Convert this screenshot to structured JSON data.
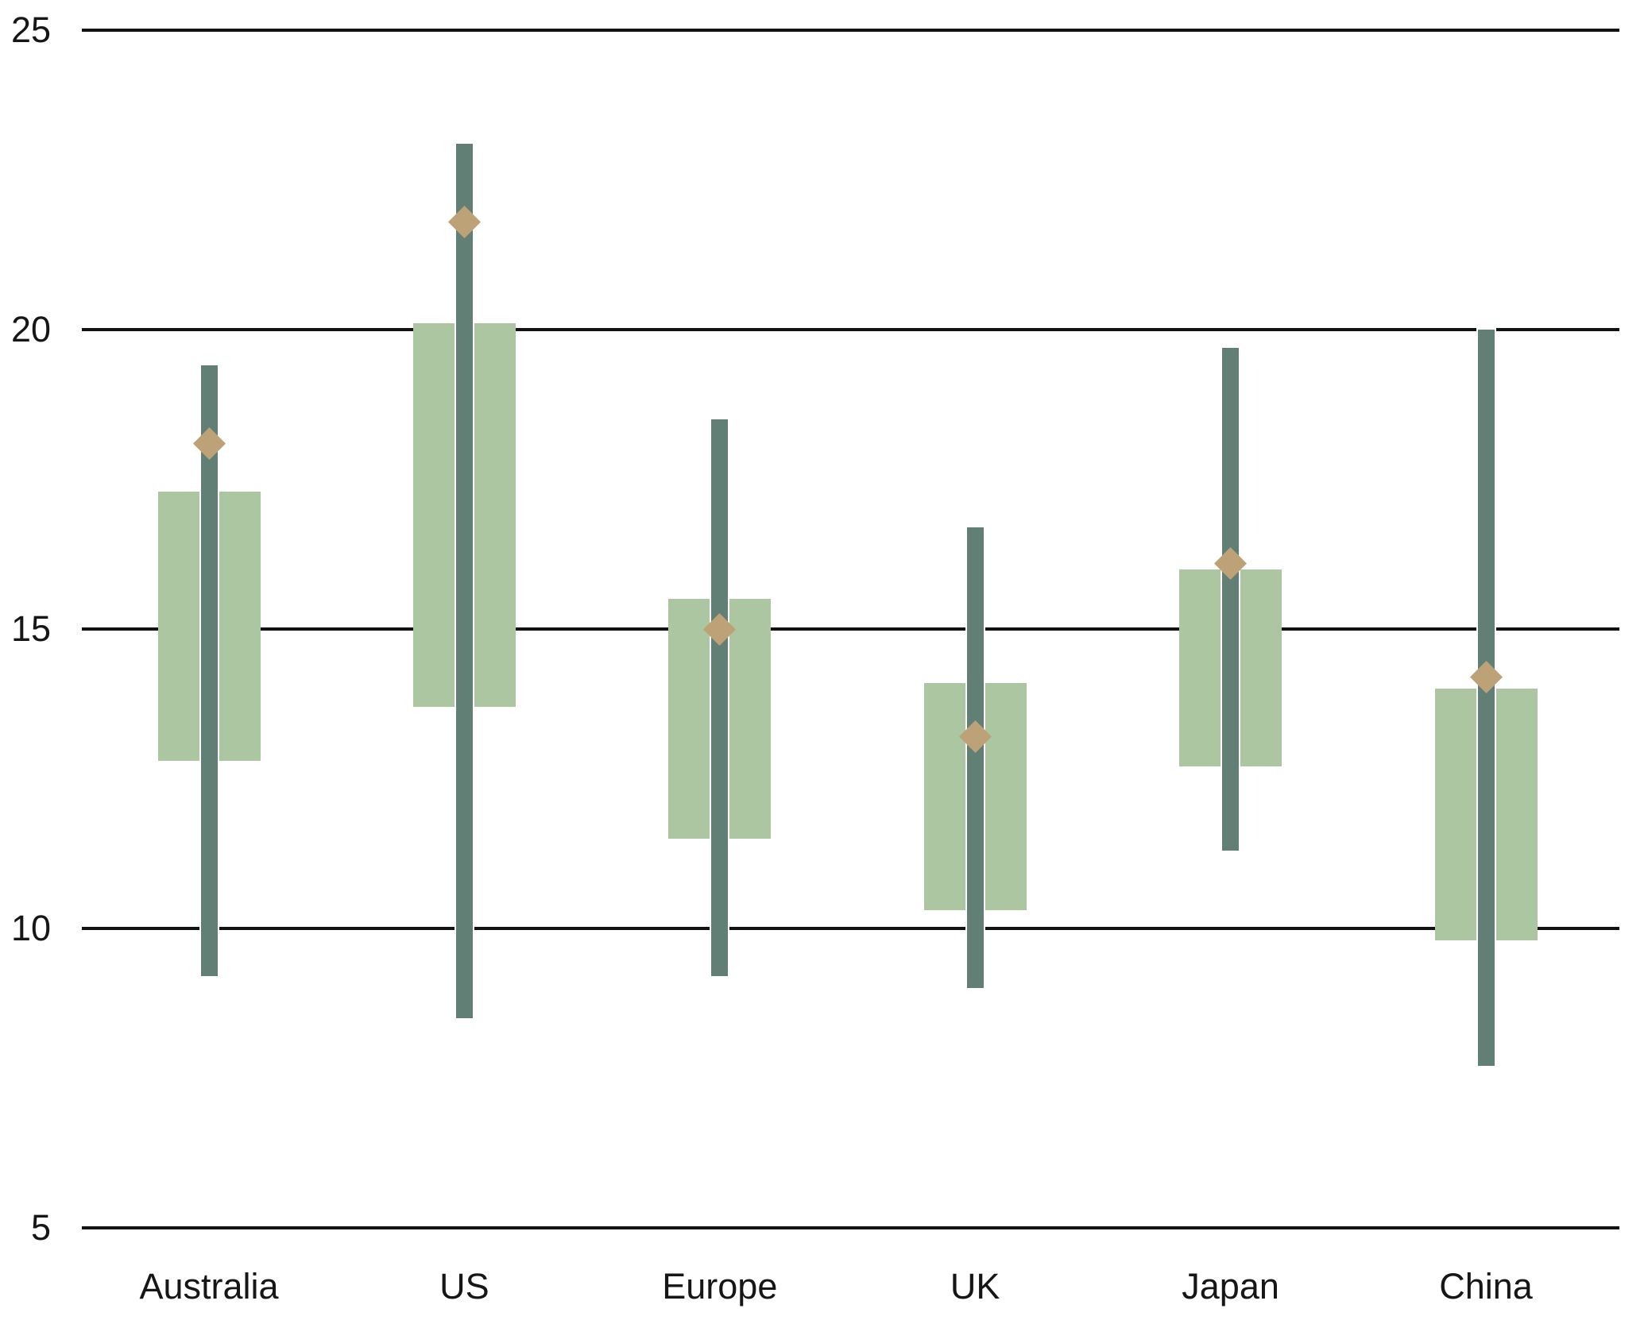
{
  "chart_data": {
    "type": "bar",
    "subtype": "range-box-with-whisker-and-marker",
    "title": "",
    "categories": [
      "Australia",
      "US",
      "Europe",
      "UK",
      "Japan",
      "China"
    ],
    "series": [
      {
        "name": "full-range-whisker",
        "kind": "range",
        "values": [
          [
            9.2,
            19.4
          ],
          [
            8.5,
            23.1
          ],
          [
            9.2,
            18.5
          ],
          [
            9.0,
            16.7
          ],
          [
            11.3,
            19.7
          ],
          [
            7.7,
            20.0
          ]
        ]
      },
      {
        "name": "inner-range-box",
        "kind": "range",
        "values": [
          [
            12.8,
            17.3
          ],
          [
            13.7,
            20.1
          ],
          [
            11.5,
            15.5
          ],
          [
            10.3,
            14.1
          ],
          [
            12.7,
            16.0
          ],
          [
            9.8,
            14.0
          ]
        ]
      },
      {
        "name": "diamond-marker",
        "kind": "point",
        "values": [
          18.1,
          21.8,
          15.0,
          13.2,
          16.1,
          14.2
        ]
      }
    ],
    "xlabel": "",
    "ylabel": "",
    "ylim": [
      5,
      25
    ],
    "yticks": [
      25,
      20,
      15,
      10,
      5
    ],
    "grid": "horizontal",
    "legend": "none"
  },
  "colors": {
    "box": "#abc6a1",
    "whisker": "#627f75",
    "diamond": "#bca276",
    "gridline": "#121212",
    "text": "#161616",
    "background": "#ffffff"
  }
}
